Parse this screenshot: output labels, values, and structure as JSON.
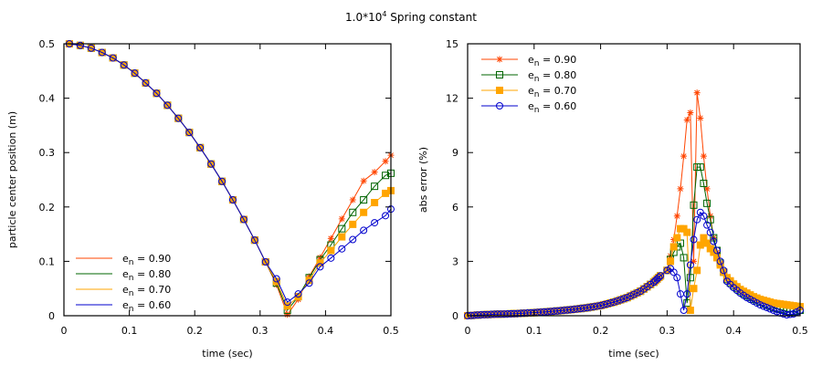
{
  "title": {
    "prefix": "1.0*10",
    "sup": "4",
    "suffix": " Spring constant"
  },
  "colors": {
    "en090": "#ff4500",
    "en080": "#006400",
    "en070": "#ffa500",
    "en060": "#0000cd"
  },
  "chart_data": [
    {
      "type": "line",
      "title": "",
      "xlabel": "time (sec)",
      "ylabel": "particle center position (m)",
      "xlim": [
        0,
        0.5
      ],
      "ylim": [
        0,
        0.5
      ],
      "xticks": [
        "0",
        "0.1",
        "0.2",
        "0.3",
        "0.4",
        "0.5"
      ],
      "yticks": [
        "0",
        "0.1",
        "0.2",
        "0.3",
        "0.4",
        "0.5"
      ],
      "legend_position": "bottom-left",
      "legend_style": "lines",
      "series": [
        {
          "name": "e_n = 0.90",
          "label_main": "e",
          "label_sub": "n",
          "label_rest": " = 0.90",
          "color_key": "en090",
          "marker": "star",
          "x": [
            0.0083,
            0.025,
            0.0417,
            0.0583,
            0.075,
            0.0917,
            0.1083,
            0.125,
            0.1417,
            0.1583,
            0.175,
            0.1917,
            0.2083,
            0.225,
            0.2417,
            0.2583,
            0.275,
            0.2917,
            0.3083,
            0.325,
            0.3417,
            0.3583,
            0.375,
            0.3917,
            0.4083,
            0.425,
            0.4417,
            0.4583,
            0.475,
            0.4917,
            0.5
          ],
          "y": [
            0.5,
            0.497,
            0.492,
            0.484,
            0.474,
            0.461,
            0.446,
            0.428,
            0.409,
            0.387,
            0.363,
            0.337,
            0.309,
            0.279,
            0.247,
            0.213,
            0.177,
            0.139,
            0.099,
            0.057,
            0.002,
            0.03,
            0.072,
            0.107,
            0.142,
            0.178,
            0.213,
            0.248,
            0.264,
            0.284,
            0.295
          ]
        },
        {
          "name": "e_n = 0.80",
          "label_main": "e",
          "label_sub": "n",
          "label_rest": " = 0.80",
          "color_key": "en080",
          "marker": "square-open",
          "x": [
            0.0083,
            0.025,
            0.0417,
            0.0583,
            0.075,
            0.0917,
            0.1083,
            0.125,
            0.1417,
            0.1583,
            0.175,
            0.1917,
            0.2083,
            0.225,
            0.2417,
            0.2583,
            0.275,
            0.2917,
            0.3083,
            0.325,
            0.3417,
            0.3583,
            0.375,
            0.3917,
            0.4083,
            0.425,
            0.4417,
            0.4583,
            0.475,
            0.4917,
            0.5
          ],
          "y": [
            0.5,
            0.497,
            0.492,
            0.484,
            0.474,
            0.461,
            0.446,
            0.428,
            0.409,
            0.387,
            0.363,
            0.337,
            0.309,
            0.279,
            0.247,
            0.213,
            0.177,
            0.139,
            0.099,
            0.06,
            0.01,
            0.035,
            0.07,
            0.103,
            0.13,
            0.16,
            0.19,
            0.213,
            0.238,
            0.258,
            0.262
          ]
        },
        {
          "name": "e_n = 0.70",
          "label_main": "e",
          "label_sub": "n",
          "label_rest": " = 0.70",
          "color_key": "en070",
          "marker": "square-filled",
          "x": [
            0.0083,
            0.025,
            0.0417,
            0.0583,
            0.075,
            0.0917,
            0.1083,
            0.125,
            0.1417,
            0.1583,
            0.175,
            0.1917,
            0.2083,
            0.225,
            0.2417,
            0.2583,
            0.275,
            0.2917,
            0.3083,
            0.325,
            0.3417,
            0.3583,
            0.375,
            0.3917,
            0.4083,
            0.425,
            0.4417,
            0.4583,
            0.475,
            0.4917,
            0.5
          ],
          "y": [
            0.5,
            0.497,
            0.492,
            0.484,
            0.474,
            0.461,
            0.446,
            0.428,
            0.409,
            0.387,
            0.363,
            0.337,
            0.309,
            0.279,
            0.247,
            0.213,
            0.177,
            0.139,
            0.099,
            0.063,
            0.018,
            0.035,
            0.065,
            0.097,
            0.12,
            0.145,
            0.168,
            0.19,
            0.208,
            0.225,
            0.23
          ]
        },
        {
          "name": "e_n = 0.60",
          "label_main": "e",
          "label_sub": "n",
          "label_rest": " = 0.60",
          "color_key": "en060",
          "marker": "circle-open",
          "x": [
            0.0083,
            0.025,
            0.0417,
            0.0583,
            0.075,
            0.0917,
            0.1083,
            0.125,
            0.1417,
            0.1583,
            0.175,
            0.1917,
            0.2083,
            0.225,
            0.2417,
            0.2583,
            0.275,
            0.2917,
            0.3083,
            0.325,
            0.3417,
            0.3583,
            0.375,
            0.3917,
            0.4083,
            0.425,
            0.4417,
            0.4583,
            0.475,
            0.4917,
            0.5
          ],
          "y": [
            0.5,
            0.497,
            0.492,
            0.484,
            0.474,
            0.461,
            0.446,
            0.428,
            0.409,
            0.387,
            0.363,
            0.337,
            0.309,
            0.279,
            0.247,
            0.213,
            0.177,
            0.139,
            0.099,
            0.068,
            0.025,
            0.04,
            0.06,
            0.09,
            0.106,
            0.123,
            0.14,
            0.157,
            0.171,
            0.184,
            0.196
          ]
        }
      ]
    },
    {
      "type": "line",
      "title": "",
      "xlabel": "time (sec)",
      "ylabel": "abs error (%)",
      "xlim": [
        0,
        0.5
      ],
      "ylim": [
        0,
        15
      ],
      "xticks": [
        "0",
        "0.1",
        "0.2",
        "0.3",
        "0.4",
        "0.5"
      ],
      "yticks": [
        "0",
        "3",
        "6",
        "9",
        "12",
        "15"
      ],
      "legend_position": "top-left",
      "legend_style": "lines-and-markers",
      "series": [
        {
          "name": "e_n = 0.90",
          "label_main": "e",
          "label_sub": "n",
          "label_rest": " = 0.90",
          "color_key": "en090",
          "marker": "star",
          "x": [
            0.3,
            0.305,
            0.31,
            0.315,
            0.32,
            0.325,
            0.33,
            0.335,
            0.34,
            0.345,
            0.35,
            0.355,
            0.36,
            0.365,
            0.37,
            0.375,
            0.38,
            0.385
          ],
          "y": [
            2.5,
            3.3,
            4.2,
            5.5,
            7.0,
            8.8,
            10.8,
            11.2,
            3.0,
            12.3,
            10.9,
            8.8,
            7.0,
            5.5,
            4.3,
            3.5,
            2.9,
            2.4
          ]
        },
        {
          "name": "e_n = 0.80",
          "label_main": "e",
          "label_sub": "n",
          "label_rest": " = 0.80",
          "color_key": "en080",
          "marker": "square-open",
          "x": [
            0.3,
            0.305,
            0.31,
            0.315,
            0.32,
            0.325,
            0.33,
            0.335,
            0.34,
            0.345,
            0.35,
            0.355,
            0.36,
            0.365,
            0.37,
            0.375,
            0.38,
            0.385
          ],
          "y": [
            2.5,
            3.1,
            3.5,
            3.8,
            4.0,
            3.2,
            0.7,
            2.1,
            6.1,
            8.2,
            8.2,
            7.3,
            6.2,
            5.3,
            4.3,
            3.6,
            2.9,
            2.4
          ]
        },
        {
          "name": "e_n = 0.70",
          "label_main": "e",
          "label_sub": "n",
          "label_rest": " = 0.70",
          "color_key": "en070",
          "marker": "square-filled",
          "x": [
            0.3,
            0.305,
            0.31,
            0.315,
            0.32,
            0.325,
            0.33,
            0.335,
            0.34,
            0.345,
            0.35,
            0.355,
            0.36,
            0.365,
            0.37,
            0.375,
            0.38,
            0.385
          ],
          "y": [
            2.5,
            3.0,
            3.8,
            4.3,
            4.8,
            4.8,
            4.6,
            0.3,
            1.5,
            2.5,
            3.9,
            4.3,
            4.0,
            3.7,
            3.5,
            3.2,
            2.8,
            2.4
          ]
        },
        {
          "name": "e_n = 0.60",
          "label_main": "e",
          "label_sub": "n",
          "label_rest": " = 0.60",
          "color_key": "en060",
          "marker": "circle-open",
          "x": [
            0.3,
            0.305,
            0.31,
            0.315,
            0.32,
            0.325,
            0.33,
            0.335,
            0.34,
            0.345,
            0.35,
            0.355,
            0.36,
            0.365,
            0.37,
            0.375,
            0.38,
            0.385
          ],
          "y": [
            2.5,
            2.6,
            2.4,
            2.1,
            1.2,
            0.3,
            1.2,
            2.8,
            4.2,
            5.3,
            5.7,
            5.5,
            5.0,
            4.6,
            4.1,
            3.6,
            3.0,
            2.5
          ]
        }
      ],
      "shared_baseline": {
        "x": [
          0,
          0.02,
          0.04,
          0.06,
          0.08,
          0.1,
          0.12,
          0.14,
          0.16,
          0.18,
          0.2,
          0.22,
          0.24,
          0.26,
          0.28,
          0.29
        ],
        "y": [
          0,
          0.05,
          0.08,
          0.1,
          0.13,
          0.17,
          0.22,
          0.28,
          0.35,
          0.44,
          0.56,
          0.75,
          1.0,
          1.35,
          1.85,
          2.2
        ]
      },
      "shared_tail": {
        "x": [
          0.39,
          0.4,
          0.41,
          0.42,
          0.43,
          0.44,
          0.45,
          0.46,
          0.47,
          0.48,
          0.49,
          0.5
        ],
        "en090": [
          2.0,
          1.7,
          1.4,
          1.2,
          1.0,
          0.85,
          0.75,
          0.65,
          0.6,
          0.55,
          0.5,
          0.45
        ],
        "en080": [
          2.0,
          1.65,
          1.35,
          1.1,
          0.9,
          0.75,
          0.6,
          0.45,
          0.35,
          0.25,
          0.2,
          0.3
        ],
        "en070": [
          2.1,
          1.75,
          1.45,
          1.25,
          1.05,
          0.9,
          0.8,
          0.7,
          0.65,
          0.6,
          0.55,
          0.5
        ],
        "en060": [
          1.9,
          1.55,
          1.25,
          1.0,
          0.8,
          0.6,
          0.45,
          0.3,
          0.15,
          0.05,
          0.1,
          0.3
        ]
      }
    }
  ]
}
